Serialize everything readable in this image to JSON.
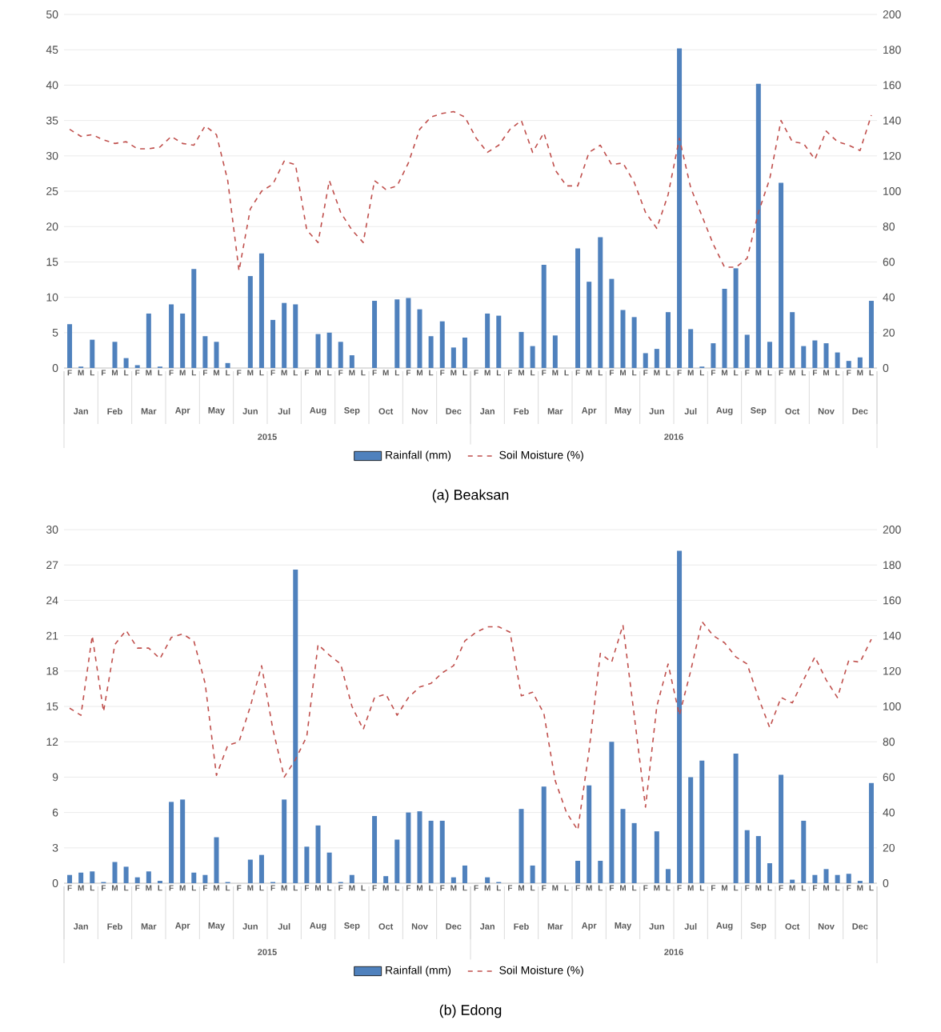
{
  "chart_data": [
    {
      "type": "bar",
      "title": "(a)  Beaksan",
      "categories": [
        "F",
        "M",
        "L",
        "F",
        "M",
        "L",
        "F",
        "M",
        "L",
        "F",
        "M",
        "L",
        "F",
        "M",
        "L",
        "F",
        "M",
        "L",
        "F",
        "M",
        "L",
        "F",
        "M",
        "L",
        "F",
        "M",
        "L",
        "F",
        "M",
        "L",
        "F",
        "M",
        "L",
        "F",
        "M",
        "L",
        "F",
        "M",
        "L",
        "F",
        "M",
        "L",
        "F",
        "M",
        "L",
        "F",
        "M",
        "L",
        "F",
        "M",
        "L",
        "F",
        "M",
        "L",
        "F",
        "M",
        "L",
        "F",
        "M",
        "L",
        "F",
        "M",
        "L",
        "F",
        "M",
        "L",
        "F",
        "M",
        "L",
        "F",
        "M",
        "L"
      ],
      "series": [
        {
          "name": "Rainfall (mm)",
          "color": "#4f81bd",
          "values": [
            6.2,
            0.2,
            4.0,
            0,
            3.7,
            1.4,
            0.4,
            7.7,
            0.2,
            9.0,
            7.7,
            14.0,
            4.5,
            3.7,
            0.7,
            0,
            13.0,
            16.2,
            6.8,
            9.2,
            9.0,
            0,
            4.8,
            5.0,
            3.7,
            1.8,
            0,
            9.5,
            0,
            9.7,
            9.9,
            8.3,
            4.5,
            6.6,
            2.9,
            4.3,
            0,
            7.7,
            7.4,
            0,
            5.1,
            3.1,
            14.6,
            4.6,
            0,
            16.9,
            12.2,
            18.5,
            12.6,
            8.2,
            7.2,
            2.1,
            2.7,
            7.9,
            45.2,
            5.5,
            0.2,
            3.5,
            11.2,
            14.1,
            4.7,
            40.2,
            3.7,
            26.2,
            7.9,
            3.1,
            3.9,
            3.5,
            2.2,
            1.0,
            1.5,
            9.5
          ]
        },
        {
          "name": "Soil Moisture (%)",
          "type": "line",
          "axis": "y2",
          "line_style": "dashed",
          "color": "#c0504d",
          "values": [
            135,
            131,
            132,
            129,
            127,
            128,
            124,
            124,
            125,
            131,
            127,
            126,
            137,
            132,
            106,
            55,
            90,
            100,
            104,
            117,
            115,
            78,
            71,
            106,
            88,
            78,
            71,
            106,
            101,
            103,
            116,
            135,
            142,
            144,
            145,
            142,
            130,
            122,
            126,
            135,
            140,
            122,
            133,
            112,
            103,
            103,
            122,
            126,
            115,
            116,
            105,
            88,
            79,
            98,
            130,
            102,
            86,
            70,
            57,
            57,
            62,
            88,
            107,
            140,
            128,
            127,
            118,
            134,
            128,
            126,
            123,
            143
          ]
        }
      ],
      "ylim": [
        0,
        50
      ],
      "yticks": [
        0,
        5,
        10,
        15,
        20,
        25,
        30,
        35,
        40,
        45,
        50
      ],
      "y2lim": [
        0,
        200
      ],
      "y2ticks": [
        0,
        20,
        40,
        60,
        80,
        100,
        120,
        140,
        160,
        180,
        200
      ],
      "grid": "y",
      "legend": "bottom",
      "annotations": [
        "Jan",
        "Feb",
        "Mar",
        "Apr",
        "May",
        "Jun",
        "Jul",
        "Aug",
        "Sep",
        "Oct",
        "Nov",
        "Dec",
        "Jan",
        "Feb",
        "Mar",
        "Apr",
        "May",
        "Jun",
        "Jul",
        "Aug",
        "Sep",
        "Oct",
        "Nov",
        "Dec",
        "2015",
        "2016"
      ]
    },
    {
      "type": "bar",
      "title": "(b)  Edong",
      "categories": [
        "F",
        "M",
        "L",
        "F",
        "M",
        "L",
        "F",
        "M",
        "L",
        "F",
        "M",
        "L",
        "F",
        "M",
        "L",
        "F",
        "M",
        "L",
        "F",
        "M",
        "L",
        "F",
        "M",
        "L",
        "F",
        "M",
        "L",
        "F",
        "M",
        "L",
        "F",
        "M",
        "L",
        "F",
        "M",
        "L",
        "F",
        "M",
        "L",
        "F",
        "M",
        "L",
        "F",
        "M",
        "L",
        "F",
        "M",
        "L",
        "F",
        "M",
        "L",
        "F",
        "M",
        "L",
        "F",
        "M",
        "L",
        "F",
        "M",
        "L",
        "F",
        "M",
        "L",
        "F",
        "M",
        "L",
        "F",
        "M",
        "L",
        "F",
        "M",
        "L"
      ],
      "series": [
        {
          "name": "Rainfall (mm)",
          "color": "#4f81bd",
          "values": [
            0.7,
            0.9,
            1.0,
            0.1,
            1.8,
            1.4,
            0.5,
            1.0,
            0.2,
            6.9,
            7.1,
            0.9,
            0.7,
            3.9,
            0.1,
            0,
            2.0,
            2.4,
            0.1,
            7.1,
            26.6,
            3.1,
            4.9,
            2.6,
            0.1,
            0.7,
            0,
            5.7,
            0.6,
            3.7,
            6.0,
            6.1,
            5.3,
            5.3,
            0.5,
            1.5,
            0,
            0.5,
            0.1,
            0,
            6.3,
            1.5,
            8.2,
            0,
            0,
            1.9,
            8.3,
            1.9,
            12.0,
            6.3,
            5.1,
            0,
            4.4,
            1.2,
            28.2,
            9.0,
            10.4,
            0,
            0,
            11.0,
            4.5,
            4.0,
            1.7,
            9.2,
            0.3,
            5.3,
            0.7,
            1.2,
            0.7,
            0.8,
            0.2,
            8.5
          ]
        },
        {
          "name": "Soil Moisture (%)",
          "type": "line",
          "axis": "y2",
          "line_style": "dashed",
          "color": "#c0504d",
          "values": [
            99,
            95,
            140,
            97,
            135,
            143,
            133,
            133,
            127,
            139,
            141,
            137,
            113,
            61,
            78,
            80,
            100,
            123,
            87,
            60,
            70,
            83,
            135,
            129,
            124,
            100,
            87,
            105,
            107,
            95,
            105,
            111,
            113,
            119,
            123,
            137,
            142,
            145,
            145,
            142,
            106,
            108,
            96,
            58,
            40,
            30,
            75,
            130,
            125,
            146,
            95,
            43,
            100,
            124,
            95,
            120,
            148,
            140,
            136,
            128,
            124,
            105,
            88,
            105,
            102,
            115,
            128,
            115,
            105,
            126,
            125,
            138
          ]
        }
      ],
      "ylim": [
        0,
        30
      ],
      "yticks": [
        0,
        3,
        6,
        9,
        12,
        15,
        18,
        21,
        24,
        27,
        30
      ],
      "y2lim": [
        0,
        200
      ],
      "y2ticks": [
        0,
        20,
        40,
        60,
        80,
        100,
        120,
        140,
        160,
        180,
        200
      ],
      "grid": "y",
      "legend": "bottom",
      "annotations": [
        "Jan",
        "Feb",
        "Mar",
        "Apr",
        "May",
        "Jun",
        "Jul",
        "Aug",
        "Sep",
        "Oct",
        "Nov",
        "Dec",
        "Jan",
        "Feb",
        "Mar",
        "Apr",
        "May",
        "Jun",
        "Jul",
        "Aug",
        "Sep",
        "Oct",
        "Nov",
        "Dec",
        "2015",
        "2016"
      ]
    }
  ]
}
